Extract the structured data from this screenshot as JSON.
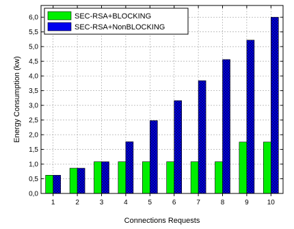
{
  "chart_data": {
    "type": "bar",
    "title": "",
    "xlabel": "Connections Requests",
    "ylabel": "Energy Consumption (kw)",
    "categories": [
      "1",
      "2",
      "3",
      "4",
      "5",
      "6",
      "7",
      "8",
      "9",
      "10"
    ],
    "ylim": [
      0,
      6.4
    ],
    "yticks": [
      "0,0",
      "0,5",
      "1,0",
      "1,5",
      "2,0",
      "2,5",
      "3,0",
      "3,5",
      "4,0",
      "4,5",
      "5,0",
      "5,5",
      "6,0"
    ],
    "grid": true,
    "legend_position": "top-left",
    "series": [
      {
        "name": "SEC-RSA+BLOCKING",
        "color": "#00ee00",
        "values": [
          0.62,
          0.86,
          1.08,
          1.08,
          1.08,
          1.08,
          1.08,
          1.08,
          1.75,
          1.75
        ]
      },
      {
        "name": "SEC-RSA+NonBLOCKING",
        "color": "#0000ee",
        "values": [
          0.62,
          0.86,
          1.08,
          1.76,
          2.48,
          3.16,
          3.84,
          4.56,
          5.22,
          6.0
        ]
      }
    ]
  }
}
